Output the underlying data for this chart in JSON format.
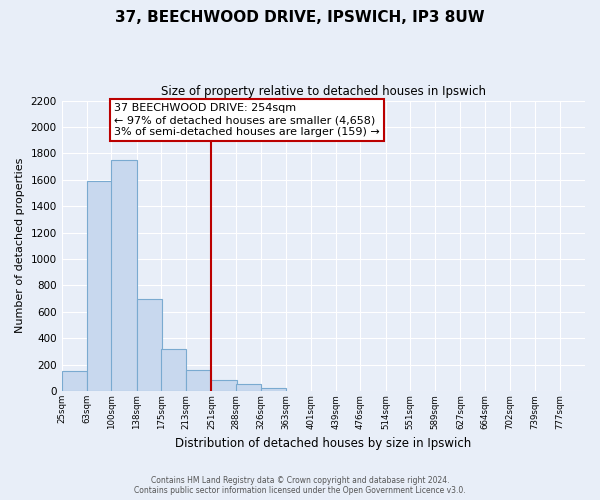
{
  "title": "37, BEECHWOOD DRIVE, IPSWICH, IP3 8UW",
  "subtitle": "Size of property relative to detached houses in Ipswich",
  "xlabel": "Distribution of detached houses by size in Ipswich",
  "ylabel": "Number of detached properties",
  "bin_labels": [
    "25sqm",
    "63sqm",
    "100sqm",
    "138sqm",
    "175sqm",
    "213sqm",
    "251sqm",
    "288sqm",
    "326sqm",
    "363sqm",
    "401sqm",
    "439sqm",
    "476sqm",
    "514sqm",
    "551sqm",
    "589sqm",
    "627sqm",
    "664sqm",
    "702sqm",
    "739sqm",
    "777sqm"
  ],
  "bin_edges": [
    25,
    63,
    100,
    138,
    175,
    213,
    251,
    288,
    326,
    363,
    401,
    439,
    476,
    514,
    551,
    589,
    627,
    664,
    702,
    739,
    777
  ],
  "bar_heights": [
    155,
    1590,
    1750,
    700,
    315,
    160,
    80,
    50,
    25,
    0,
    0,
    0,
    0,
    0,
    0,
    0,
    0,
    0,
    0,
    0
  ],
  "bar_color": "#c8d8ee",
  "bar_edge_color": "#7aaad0",
  "vline_x_index": 6,
  "vline_color": "#bb0000",
  "annotation_line1": "37 BEECHWOOD DRIVE: 254sqm",
  "annotation_line2": "← 97% of detached houses are smaller (4,658)",
  "annotation_line3": "3% of semi-detached houses are larger (159) →",
  "ylim": [
    0,
    2200
  ],
  "yticks": [
    0,
    200,
    400,
    600,
    800,
    1000,
    1200,
    1400,
    1600,
    1800,
    2000,
    2200
  ],
  "footer_line1": "Contains HM Land Registry data © Crown copyright and database right 2024.",
  "footer_line2": "Contains public sector information licensed under the Open Government Licence v3.0.",
  "bg_color": "#e8eeF8",
  "grid_color": "#ffffff"
}
